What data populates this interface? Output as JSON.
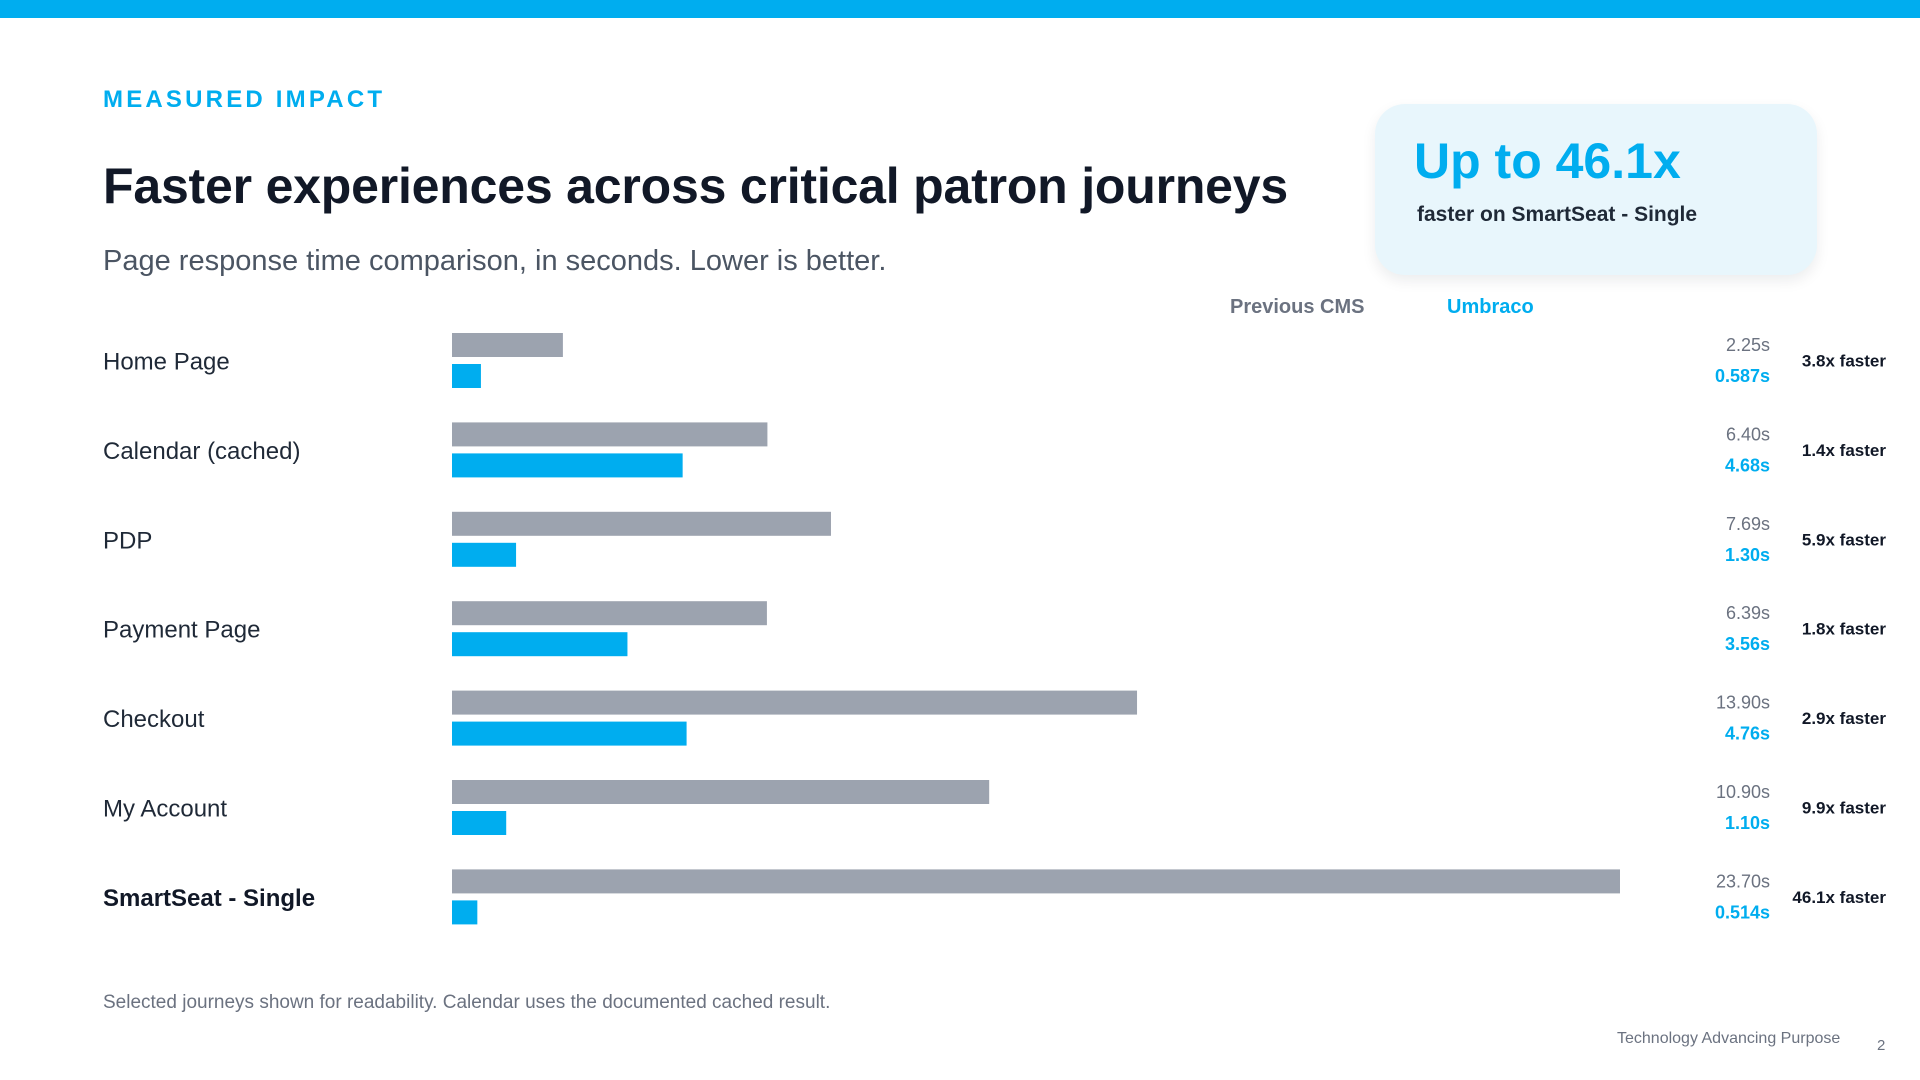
{
  "slide": {
    "eyebrow": "MEASURED IMPACT",
    "title": "Faster experiences across critical patron journeys",
    "subtitle": "Page response time comparison, in seconds. Lower is better.",
    "callout": {
      "headline": "Up to 46.1x",
      "text": "faster on SmartSeat - Single"
    },
    "legend": {
      "previous": "Previous CMS",
      "new": "Umbraco"
    },
    "footnote": "Selected journeys shown for readability. Calendar uses the documented cached result.",
    "footer": "Technology Advancing Purpose",
    "page_number": "2"
  },
  "chart_data": {
    "type": "bar",
    "orientation": "horizontal",
    "title": "",
    "xlabel": "",
    "ylabel": "",
    "xlim": [
      0,
      23.7
    ],
    "grid": false,
    "legend_position": "top-right",
    "categories": [
      "Home Page",
      "Calendar (cached)",
      "PDP",
      "Payment Page",
      "Checkout",
      "My Account",
      "SmartSeat - Single"
    ],
    "series": [
      {
        "name": "Previous CMS",
        "color": "#9ca3af",
        "values": [
          2.25,
          6.4,
          7.69,
          6.39,
          13.9,
          10.9,
          23.7
        ],
        "value_labels": [
          "2.25s",
          "6.40s",
          "7.69s",
          "6.39s",
          "13.90s",
          "10.90s",
          "23.70s"
        ]
      },
      {
        "name": "Umbraco",
        "color": "#00adef",
        "values": [
          0.587,
          4.68,
          1.3,
          3.56,
          4.76,
          1.1,
          0.514
        ],
        "value_labels": [
          "0.587s",
          "4.68s",
          "1.30s",
          "3.56s",
          "4.76s",
          "1.10s",
          "0.514s"
        ]
      }
    ],
    "speedup_labels": [
      "3.8x faster",
      "1.4x faster",
      "5.9x faster",
      "1.8x faster",
      "2.9x faster",
      "9.9x faster",
      "46.1x faster"
    ],
    "highlight_category": "SmartSeat - Single"
  }
}
